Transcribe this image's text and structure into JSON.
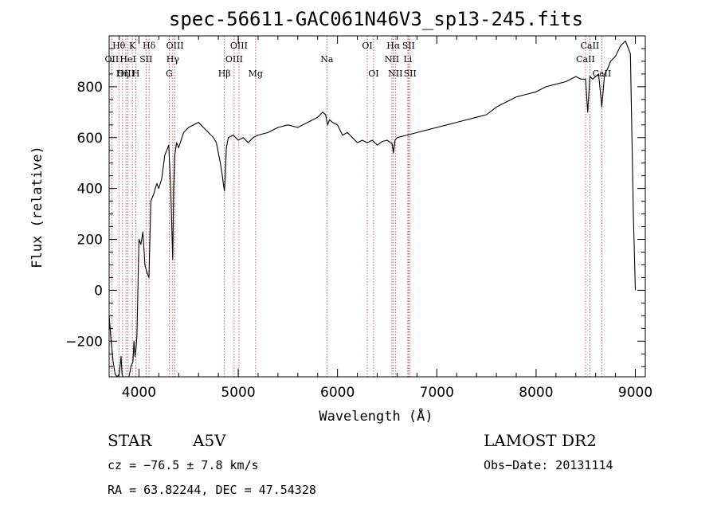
{
  "chart_data": {
    "type": "line",
    "title": "spec-56611-GAC061N46V3_sp13-245.fits",
    "xlabel": "Wavelength (Å)",
    "ylabel": "Flux (relative)",
    "xlim": [
      3700,
      9100
    ],
    "ylim": [
      -340,
      1000
    ],
    "x_ticks": [
      4000,
      5000,
      6000,
      7000,
      8000,
      9000
    ],
    "x_tick_labels": [
      "4000",
      "5000",
      "6000",
      "7000",
      "8000",
      "9000"
    ],
    "y_ticks": [
      -200,
      0,
      200,
      400,
      600,
      800
    ],
    "y_tick_labels": [
      "−200",
      "0",
      "200",
      "400",
      "600",
      "800"
    ],
    "series": [
      {
        "color": "#000000",
        "x": [
          3700,
          3720,
          3740,
          3760,
          3780,
          3800,
          3810,
          3820,
          3830,
          3840,
          3860,
          3880,
          3900,
          3920,
          3940,
          3950,
          3960,
          3970,
          3980,
          4000,
          4020,
          4040,
          4060,
          4080,
          4101,
          4120,
          4150,
          4180,
          4200,
          4230,
          4260,
          4300,
          4320,
          4340,
          4350,
          4360,
          4380,
          4400,
          4450,
          4500,
          4550,
          4600,
          4650,
          4700,
          4750,
          4780,
          4800,
          4820,
          4840,
          4850,
          4861,
          4870,
          4880,
          4900,
          4950,
          5000,
          5050,
          5100,
          5150,
          5200,
          5300,
          5400,
          5500,
          5600,
          5700,
          5800,
          5850,
          5880,
          5900,
          5920,
          5950,
          6000,
          6050,
          6100,
          6150,
          6200,
          6250,
          6300,
          6350,
          6400,
          6450,
          6500,
          6550,
          6563,
          6580,
          6600,
          6700,
          6800,
          6900,
          7000,
          7100,
          7200,
          7300,
          7400,
          7500,
          7600,
          7700,
          7800,
          7900,
          8000,
          8100,
          8200,
          8300,
          8400,
          8450,
          8498,
          8520,
          8542,
          8570,
          8600,
          8630,
          8662,
          8690,
          8720,
          8750,
          8800,
          8850,
          8900,
          8950,
          8980,
          9000
        ],
        "y": [
          -100,
          -200,
          -280,
          -330,
          -340,
          -330,
          -300,
          -260,
          -330,
          -340,
          -340,
          -340,
          -340,
          -300,
          -280,
          -200,
          -260,
          -230,
          -180,
          200,
          180,
          230,
          100,
          70,
          50,
          350,
          380,
          420,
          400,
          440,
          530,
          570,
          400,
          120,
          400,
          530,
          580,
          560,
          620,
          640,
          650,
          660,
          640,
          620,
          600,
          580,
          540,
          500,
          450,
          420,
          390,
          450,
          560,
          600,
          610,
          590,
          600,
          580,
          600,
          610,
          620,
          640,
          650,
          640,
          660,
          680,
          700,
          690,
          650,
          670,
          660,
          650,
          610,
          620,
          600,
          580,
          590,
          580,
          590,
          570,
          585,
          590,
          575,
          540,
          590,
          600,
          610,
          620,
          630,
          640,
          650,
          660,
          670,
          680,
          690,
          720,
          740,
          760,
          770,
          780,
          800,
          810,
          820,
          840,
          830,
          830,
          700,
          840,
          830,
          840,
          850,
          720,
          850,
          870,
          900,
          920,
          960,
          980,
          930,
          300,
          0
        ]
      }
    ],
    "lines": [
      {
        "label": "Hθ",
        "x": 3798,
        "row": 1
      },
      {
        "label": "OII",
        "x": 3727,
        "row": 2
      },
      {
        "label": "OIII",
        "x": 3869,
        "row": 3
      },
      {
        "label": "K",
        "x": 3934,
        "row": 1
      },
      {
        "label": "HeI",
        "x": 3889,
        "row": 2
      },
      {
        "label": "Hη",
        "x": 3835,
        "row": 3
      },
      {
        "label": "Hδ",
        "x": 4102,
        "row": 1
      },
      {
        "label": "SII",
        "x": 4072,
        "row": 2
      },
      {
        "label": "H",
        "x": 3969,
        "row": 3
      },
      {
        "label": "OIII",
        "x": 4363,
        "row": 1
      },
      {
        "label": "Hγ",
        "x": 4341,
        "row": 2
      },
      {
        "label": "G",
        "x": 4305,
        "row": 3
      },
      {
        "label": "OIII",
        "x": 5007,
        "row": 1
      },
      {
        "label": "OIII",
        "x": 4959,
        "row": 2
      },
      {
        "label": "Hβ",
        "x": 4861,
        "row": 3
      },
      {
        "label": "Mg",
        "x": 5175,
        "row": 3
      },
      {
        "label": "Na",
        "x": 5893,
        "row": 2
      },
      {
        "label": "OI",
        "x": 6300,
        "row": 1
      },
      {
        "label": "OI",
        "x": 6363,
        "row": 3
      },
      {
        "label": "Hα",
        "x": 6563,
        "row": 1
      },
      {
        "label": "NII",
        "x": 6548,
        "row": 2
      },
      {
        "label": "NII",
        "x": 6583,
        "row": 3
      },
      {
        "label": "SII",
        "x": 6716,
        "row": 1
      },
      {
        "label": "Li",
        "x": 6708,
        "row": 2
      },
      {
        "label": "SII",
        "x": 6731,
        "row": 3
      },
      {
        "label": "CaII",
        "x": 8542,
        "row": 1
      },
      {
        "label": "CaII",
        "x": 8498,
        "row": 2
      },
      {
        "label": "CaII",
        "x": 8662,
        "row": 3
      }
    ]
  },
  "info": {
    "object_class": "STAR",
    "subclass": "A5V",
    "survey": "LAMOST DR2",
    "cz": "cz = −76.5 ± 7.8 km/s",
    "obs_date": "Obs−Date: 20131114",
    "radec": "RA =  63.82244, DEC =  47.54328"
  }
}
